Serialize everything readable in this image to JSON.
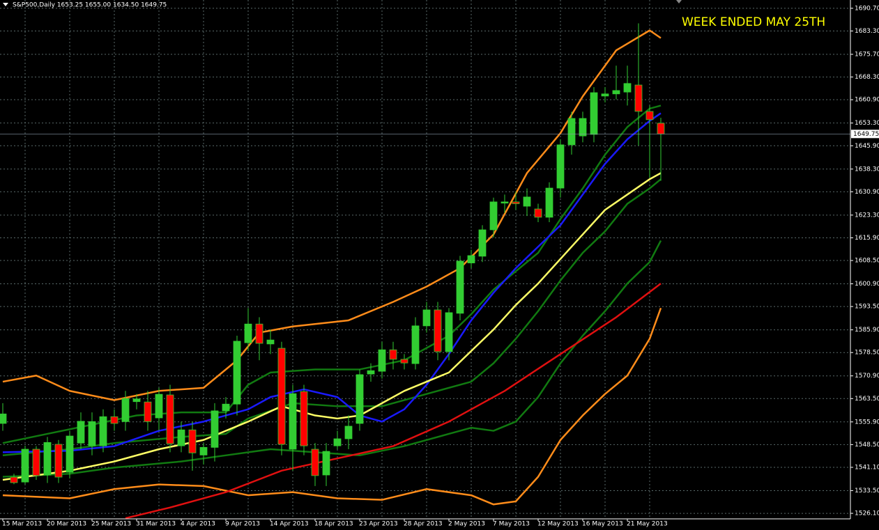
{
  "chart_data": {
    "type": "candlestick",
    "title": "S&P500,Daily  1653.25 1655.00 1634.50 1649.75",
    "annotation": "WEEK ENDED MAY 25TH",
    "ylim": [
      1524.3,
      1693.4
    ],
    "yticks": [
      {
        "value": 1690.7,
        "label": "1690.70"
      },
      {
        "value": 1683.3,
        "label": "1683.30"
      },
      {
        "value": 1675.7,
        "label": "1675.70"
      },
      {
        "value": 1668.3,
        "label": "1668.30"
      },
      {
        "value": 1660.9,
        "label": "1660.90"
      },
      {
        "value": 1653.3,
        "label": "1653.30"
      },
      {
        "value": 1645.9,
        "label": "1645.90"
      },
      {
        "value": 1638.3,
        "label": "1638.30"
      },
      {
        "value": 1630.9,
        "label": "1630.90"
      },
      {
        "value": 1623.3,
        "label": "1623.30"
      },
      {
        "value": 1615.9,
        "label": "1615.90"
      },
      {
        "value": 1608.5,
        "label": "1608.50"
      },
      {
        "value": 1600.9,
        "label": "1600.90"
      },
      {
        "value": 1593.5,
        "label": "1593.50"
      },
      {
        "value": 1585.9,
        "label": "1585.90"
      },
      {
        "value": 1578.5,
        "label": "1578.50"
      },
      {
        "value": 1570.9,
        "label": "1570.90"
      },
      {
        "value": 1563.5,
        "label": "1563.50"
      },
      {
        "value": 1555.9,
        "label": "1555.90"
      },
      {
        "value": 1548.5,
        "label": "1548.50"
      },
      {
        "value": 1541.1,
        "label": "1541.10"
      },
      {
        "value": 1533.5,
        "label": "1533.50"
      },
      {
        "value": 1526.1,
        "label": "1526.10"
      }
    ],
    "last_price": {
      "value": 1649.75,
      "label": "1649.75"
    },
    "grid": true,
    "up_color": "#32cd32",
    "down_color": "#ff0000",
    "wick_color": "#32cd32",
    "categories": [
      "15 Mar 2013",
      null,
      null,
      null,
      "20 Mar 2013",
      null,
      null,
      null,
      "25 Mar 2013",
      null,
      null,
      null,
      "31 Mar 2013",
      null,
      null,
      null,
      "4 Apr 2013",
      null,
      null,
      null,
      "9 Apr 2013",
      null,
      null,
      null,
      "14 Apr 2013",
      null,
      null,
      null,
      "18 Apr 2013",
      null,
      null,
      null,
      "23 Apr 2013",
      null,
      null,
      null,
      "28 Apr 2013",
      null,
      null,
      null,
      "2 May 2013",
      null,
      null,
      null,
      "7 May 2013",
      null,
      null,
      null,
      "12 May 2013",
      null,
      null,
      null,
      "16 May 2013",
      null,
      null,
      null,
      "21 May 2013",
      null,
      null,
      null
    ],
    "candles": [
      {
        "open": 1555.4,
        "high": 1562,
        "low": 1553,
        "close": 1558.5
      },
      {
        "open": 1537.9,
        "high": 1539,
        "low": 1535.6,
        "close": 1536.1
      },
      {
        "open": 1536.3,
        "high": 1548.1,
        "low": 1535.6,
        "close": 1547
      },
      {
        "open": 1547,
        "high": 1548,
        "low": 1537,
        "close": 1538.4
      },
      {
        "open": 1538.6,
        "high": 1551,
        "low": 1536,
        "close": 1549.2
      },
      {
        "open": 1548.6,
        "high": 1550,
        "low": 1536,
        "close": 1537.9
      },
      {
        "open": 1539.5,
        "high": 1553,
        "low": 1537.5,
        "close": 1551.3
      },
      {
        "open": 1549,
        "high": 1559,
        "low": 1547,
        "close": 1556.1
      },
      {
        "open": 1548.1,
        "high": 1559,
        "low": 1545,
        "close": 1556
      },
      {
        "open": 1548.1,
        "high": 1560,
        "low": 1546,
        "close": 1557.6
      },
      {
        "open": 1557.6,
        "high": 1560,
        "low": 1553,
        "close": 1555.4
      },
      {
        "open": 1556,
        "high": 1566,
        "low": 1553,
        "close": 1563.5
      },
      {
        "open": 1562.5,
        "high": 1565,
        "low": 1560,
        "close": 1563.4
      },
      {
        "open": 1562.4,
        "high": 1566,
        "low": 1553,
        "close": 1556
      },
      {
        "open": 1557.2,
        "high": 1567,
        "low": 1553,
        "close": 1564.9
      },
      {
        "open": 1564.7,
        "high": 1568,
        "low": 1546,
        "close": 1548.8
      },
      {
        "open": 1548.1,
        "high": 1556,
        "low": 1546,
        "close": 1553.3
      },
      {
        "open": 1553.3,
        "high": 1556,
        "low": 1540,
        "close": 1545.8
      },
      {
        "open": 1545.1,
        "high": 1549,
        "low": 1542,
        "close": 1547.6
      },
      {
        "open": 1547.6,
        "high": 1562,
        "low": 1543,
        "close": 1559.5
      },
      {
        "open": 1559.5,
        "high": 1564,
        "low": 1557,
        "close": 1561.7
      },
      {
        "open": 1561.7,
        "high": 1584,
        "low": 1558,
        "close": 1582.2
      },
      {
        "open": 1581.7,
        "high": 1593,
        "low": 1579,
        "close": 1587.8
      },
      {
        "open": 1587.8,
        "high": 1590,
        "low": 1576,
        "close": 1581.5
      },
      {
        "open": 1581.3,
        "high": 1586,
        "low": 1578,
        "close": 1582.6
      },
      {
        "open": 1579.9,
        "high": 1582,
        "low": 1545,
        "close": 1548.6
      },
      {
        "open": 1547,
        "high": 1568,
        "low": 1540,
        "close": 1565.1
      },
      {
        "open": 1565.8,
        "high": 1568,
        "low": 1545,
        "close": 1548.1
      },
      {
        "open": 1547,
        "high": 1549,
        "low": 1535,
        "close": 1538.4
      },
      {
        "open": 1538.6,
        "high": 1549,
        "low": 1535,
        "close": 1546.3
      },
      {
        "open": 1548.1,
        "high": 1553,
        "low": 1547,
        "close": 1550.4
      },
      {
        "open": 1550.4,
        "high": 1558,
        "low": 1547,
        "close": 1554.5
      },
      {
        "open": 1555.4,
        "high": 1573,
        "low": 1553,
        "close": 1571.3
      },
      {
        "open": 1571.5,
        "high": 1575,
        "low": 1569,
        "close": 1572.6
      },
      {
        "open": 1572.4,
        "high": 1582,
        "low": 1570,
        "close": 1579.4
      },
      {
        "open": 1579.4,
        "high": 1582,
        "low": 1573,
        "close": 1576.3
      },
      {
        "open": 1576.3,
        "high": 1578,
        "low": 1573,
        "close": 1575.1
      },
      {
        "open": 1574.9,
        "high": 1590,
        "low": 1573,
        "close": 1587.2
      },
      {
        "open": 1587.2,
        "high": 1595,
        "low": 1585,
        "close": 1592.4
      },
      {
        "open": 1592.4,
        "high": 1595,
        "low": 1576,
        "close": 1578.8
      },
      {
        "open": 1578.8,
        "high": 1593,
        "low": 1576,
        "close": 1591.5
      },
      {
        "open": 1591.3,
        "high": 1610,
        "low": 1589,
        "close": 1608.3
      },
      {
        "open": 1607.7,
        "high": 1612,
        "low": 1606,
        "close": 1610.1
      },
      {
        "open": 1609.9,
        "high": 1620,
        "low": 1608,
        "close": 1618.5
      },
      {
        "open": 1618.5,
        "high": 1629,
        "low": 1616,
        "close": 1627.6
      },
      {
        "open": 1627.2,
        "high": 1630,
        "low": 1624,
        "close": 1627.6
      },
      {
        "open": 1627.6,
        "high": 1631,
        "low": 1625,
        "close": 1627
      },
      {
        "open": 1626.2,
        "high": 1632,
        "low": 1623,
        "close": 1629.2
      },
      {
        "open": 1625.3,
        "high": 1627,
        "low": 1621,
        "close": 1622.6
      },
      {
        "open": 1622.6,
        "high": 1634,
        "low": 1621,
        "close": 1632.1
      },
      {
        "open": 1632.1,
        "high": 1648,
        "low": 1629,
        "close": 1646.2
      },
      {
        "open": 1646.2,
        "high": 1657,
        "low": 1643,
        "close": 1654.8
      },
      {
        "open": 1649.1,
        "high": 1657,
        "low": 1647,
        "close": 1654.8
      },
      {
        "open": 1649.6,
        "high": 1665,
        "low": 1647,
        "close": 1663.2
      },
      {
        "open": 1662.1,
        "high": 1665,
        "low": 1660,
        "close": 1662.8
      },
      {
        "open": 1662.8,
        "high": 1672,
        "low": 1661,
        "close": 1663.9
      },
      {
        "open": 1663.4,
        "high": 1672,
        "low": 1659,
        "close": 1666.2
      },
      {
        "open": 1665.7,
        "high": 1685.8,
        "low": 1646,
        "close": 1657.1
      },
      {
        "open": 1657.1,
        "high": 1659,
        "low": 1635.5,
        "close": 1654.4
      },
      {
        "open": 1653.25,
        "high": 1655,
        "low": 1634.5,
        "close": 1649.75
      }
    ],
    "series": [
      {
        "color": "#ff8c1a",
        "x": [
          0,
          3,
          6,
          10,
          14,
          18,
          21,
          23,
          26,
          31,
          35,
          38,
          41,
          44,
          47,
          50,
          52,
          55,
          58,
          59
        ],
        "values": [
          1569,
          1571,
          1566,
          1563,
          1566,
          1567,
          1576,
          1585,
          1587,
          1589,
          1595,
          1600,
          1606,
          1617,
          1637,
          1650,
          1662,
          1677,
          1683.5,
          1681
        ]
      },
      {
        "color": "#ff8c1a",
        "x": [
          0,
          6,
          10,
          14,
          18,
          22,
          26,
          30,
          34,
          38,
          42,
          44,
          46,
          48,
          50,
          52,
          54,
          56,
          58,
          59
        ],
        "values": [
          1532,
          1531,
          1534,
          1535.5,
          1535,
          1532,
          1533,
          1531,
          1530.5,
          1534,
          1532,
          1529,
          1530,
          1538,
          1550,
          1558,
          1565,
          1571,
          1583,
          1593
        ]
      },
      {
        "color": "#117a11",
        "x": [
          0,
          4,
          8,
          12,
          16,
          20,
          22,
          24,
          28,
          32,
          36,
          38,
          40,
          42,
          44,
          46,
          48,
          50,
          52,
          54,
          56,
          58,
          59
        ],
        "values": [
          1549,
          1552,
          1555,
          1558,
          1559,
          1559,
          1568,
          1572,
          1573,
          1573,
          1576,
          1580,
          1584,
          1591,
          1599,
          1605,
          1611,
          1622,
          1632,
          1643,
          1652,
          1658,
          1659
        ]
      },
      {
        "color": "#117a11",
        "x": [
          0,
          6,
          10,
          16,
          20,
          22,
          26,
          30,
          34,
          38,
          42,
          44,
          46,
          48,
          50,
          52,
          54,
          56,
          58,
          59
        ],
        "values": [
          1545,
          1547,
          1549,
          1551,
          1552,
          1557,
          1562,
          1561,
          1561,
          1565,
          1569,
          1575,
          1583,
          1592,
          1602,
          1611,
          1618,
          1627,
          1632,
          1635
        ]
      },
      {
        "color": "#117a11",
        "x": [
          0,
          6,
          10,
          16,
          20,
          24,
          28,
          32,
          36,
          40,
          42,
          44,
          46,
          48,
          50,
          52,
          54,
          56,
          58,
          59
        ],
        "values": [
          1538,
          1539,
          1541,
          1543,
          1545,
          1547,
          1546,
          1545,
          1548,
          1552,
          1554,
          1553,
          1556,
          1564,
          1575,
          1584,
          1592,
          1601,
          1608,
          1615
        ]
      },
      {
        "color": "#1a1aff",
        "x": [
          0,
          6,
          10,
          14,
          18,
          22,
          24,
          27,
          30,
          32,
          34,
          36,
          38,
          40,
          42,
          44,
          46,
          48,
          50,
          52,
          54,
          56,
          58,
          59
        ],
        "values": [
          1546,
          1546.5,
          1548,
          1553,
          1556,
          1560,
          1564,
          1566.5,
          1564,
          1558,
          1556,
          1560,
          1568,
          1578,
          1589,
          1598,
          1606,
          1613,
          1620,
          1630,
          1640,
          1648,
          1654,
          1656.5
        ]
      },
      {
        "color": "#ffff66",
        "x": [
          0,
          2,
          6,
          10,
          14,
          18,
          22,
          25,
          28,
          30,
          32,
          34,
          36,
          38,
          40,
          42,
          44,
          46,
          48,
          50,
          52,
          54,
          56,
          58,
          59
        ],
        "values": [
          1537,
          1538,
          1540,
          1543,
          1547,
          1550,
          1556,
          1561,
          1558,
          1557,
          1558,
          1562,
          1566,
          1569,
          1572,
          1579,
          1586,
          1594,
          1601,
          1609,
          1617,
          1625,
          1630,
          1635,
          1637
        ]
      },
      {
        "color": "#e01010",
        "x": [
          11,
          15,
          20,
          25,
          30,
          35,
          40,
          45,
          50,
          55,
          59
        ],
        "values": [
          1524.5,
          1528,
          1533,
          1540,
          1544,
          1548,
          1556,
          1566,
          1578,
          1590,
          1601
        ]
      }
    ]
  }
}
